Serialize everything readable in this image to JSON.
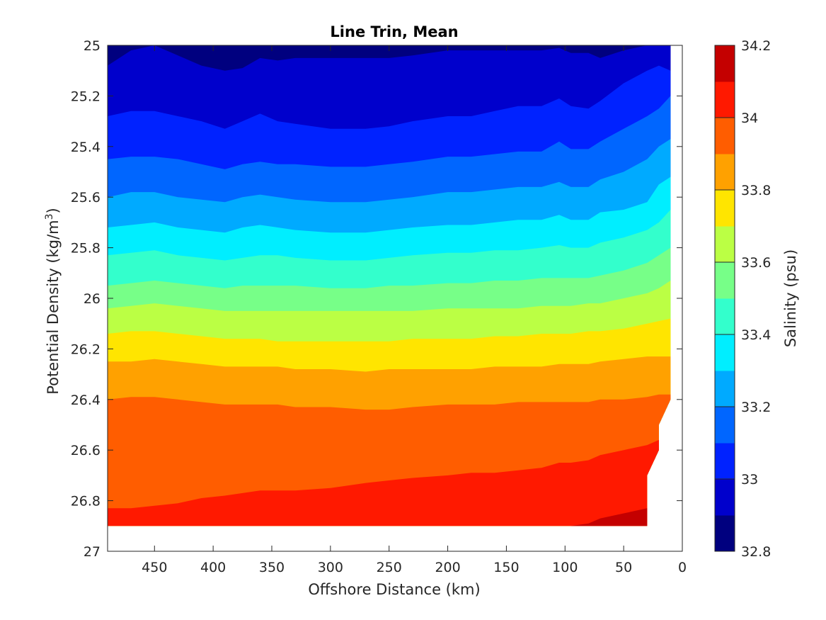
{
  "chart_data": {
    "type": "heatmap",
    "subtype": "filled-contour",
    "title": "Line Trin, Mean",
    "xlabel": "Offshore Distance (km)",
    "ylabel_main": "Potential Density (kg/m",
    "ylabel_sup": "3",
    "ylabel_end": ")",
    "xlim": [
      490,
      0
    ],
    "x_reversed": true,
    "ylim": [
      25,
      27
    ],
    "y_reversed": true,
    "x_ticks": [
      450,
      400,
      350,
      300,
      250,
      200,
      150,
      100,
      50,
      0
    ],
    "y_ticks": [
      25,
      25.2,
      25.4,
      25.6,
      25.8,
      26,
      26.2,
      26.4,
      26.6,
      26.8,
      27
    ],
    "y_tick_labels": [
      "25",
      "25.2",
      "25.4",
      "25.6",
      "25.8",
      "26",
      "26.2",
      "26.4",
      "26.6",
      "26.8",
      "27"
    ],
    "colorbar": {
      "label": "Salinity (psu)",
      "range": [
        32.8,
        34.2
      ],
      "ticks": [
        32.8,
        33,
        33.2,
        33.4,
        33.6,
        33.8,
        34,
        34.2
      ],
      "tick_labels": [
        "32.8",
        "33",
        "33.2",
        "33.4",
        "33.6",
        "33.8",
        "34",
        "34.2"
      ],
      "levels": [
        32.8,
        32.9,
        33.0,
        33.1,
        33.2,
        33.3,
        33.4,
        33.5,
        33.6,
        33.7,
        33.8,
        33.9,
        34.0,
        34.1,
        34.2
      ],
      "colors": [
        "#00007f",
        "#0000cc",
        "#0022ff",
        "#0066ff",
        "#00aaff",
        "#00eeff",
        "#33ffcc",
        "#77ff88",
        "#bbff44",
        "#ffe500",
        "#ffa100",
        "#ff5d00",
        "#ff1900",
        "#c40000"
      ]
    },
    "x_stations": [
      490,
      470,
      450,
      430,
      410,
      390,
      375,
      360,
      345,
      330,
      300,
      270,
      250,
      230,
      200,
      180,
      160,
      140,
      120,
      105,
      95,
      80,
      70,
      50,
      30,
      20,
      10
    ],
    "isopycnal_boundaries": [
      {
        "salinity": 32.9,
        "y": [
          25.08,
          25.02,
          25.0,
          25.04,
          25.08,
          25.1,
          25.09,
          25.05,
          25.06,
          25.05,
          25.05,
          25.05,
          25.05,
          25.04,
          25.02,
          25.02,
          25.02,
          25.02,
          25.02,
          25.01,
          25.03,
          25.03,
          25.05,
          25.02,
          25.0,
          25.0,
          25.0
        ]
      },
      {
        "salinity": 33.0,
        "y": [
          25.28,
          25.26,
          25.26,
          25.28,
          25.3,
          25.33,
          25.3,
          25.27,
          25.3,
          25.31,
          25.33,
          25.33,
          25.32,
          25.3,
          25.28,
          25.28,
          25.26,
          25.24,
          25.24,
          25.21,
          25.24,
          25.25,
          25.22,
          25.15,
          25.1,
          25.08,
          25.1
        ]
      },
      {
        "salinity": 33.1,
        "y": [
          25.45,
          25.44,
          25.44,
          25.45,
          25.47,
          25.49,
          25.47,
          25.46,
          25.47,
          25.47,
          25.48,
          25.48,
          25.47,
          25.46,
          25.44,
          25.44,
          25.43,
          25.42,
          25.42,
          25.38,
          25.41,
          25.41,
          25.38,
          25.33,
          25.28,
          25.25,
          25.2
        ]
      },
      {
        "salinity": 33.2,
        "y": [
          25.6,
          25.58,
          25.58,
          25.6,
          25.61,
          25.62,
          25.6,
          25.59,
          25.6,
          25.61,
          25.62,
          25.62,
          25.61,
          25.6,
          25.58,
          25.58,
          25.57,
          25.56,
          25.56,
          25.54,
          25.56,
          25.56,
          25.53,
          25.5,
          25.45,
          25.4,
          25.37
        ]
      },
      {
        "salinity": 33.3,
        "y": [
          25.72,
          25.71,
          25.7,
          25.72,
          25.73,
          25.74,
          25.72,
          25.71,
          25.72,
          25.73,
          25.74,
          25.74,
          25.73,
          25.72,
          25.71,
          25.71,
          25.7,
          25.69,
          25.69,
          25.67,
          25.69,
          25.69,
          25.66,
          25.65,
          25.62,
          25.55,
          25.52
        ]
      },
      {
        "salinity": 33.4,
        "y": [
          25.83,
          25.82,
          25.81,
          25.83,
          25.84,
          25.85,
          25.84,
          25.83,
          25.83,
          25.84,
          25.85,
          25.85,
          25.84,
          25.83,
          25.82,
          25.82,
          25.81,
          25.81,
          25.8,
          25.79,
          25.8,
          25.8,
          25.78,
          25.76,
          25.73,
          25.7,
          25.65
        ]
      },
      {
        "salinity": 33.5,
        "y": [
          25.95,
          25.94,
          25.93,
          25.94,
          25.95,
          25.96,
          25.95,
          25.95,
          25.95,
          25.95,
          25.96,
          25.96,
          25.95,
          25.95,
          25.94,
          25.94,
          25.93,
          25.93,
          25.92,
          25.92,
          25.92,
          25.92,
          25.91,
          25.89,
          25.86,
          25.83,
          25.8
        ]
      },
      {
        "salinity": 33.6,
        "y": [
          26.04,
          26.03,
          26.02,
          26.03,
          26.04,
          26.05,
          26.05,
          26.05,
          26.05,
          26.05,
          26.05,
          26.05,
          26.05,
          26.05,
          26.04,
          26.04,
          26.04,
          26.04,
          26.03,
          26.03,
          26.03,
          26.02,
          26.02,
          26.0,
          25.98,
          25.96,
          25.93
        ]
      },
      {
        "salinity": 33.7,
        "y": [
          26.14,
          26.13,
          26.13,
          26.14,
          26.15,
          26.16,
          26.16,
          26.16,
          26.17,
          26.17,
          26.17,
          26.17,
          26.17,
          26.16,
          26.16,
          26.16,
          26.15,
          26.15,
          26.14,
          26.14,
          26.14,
          26.13,
          26.13,
          26.12,
          26.1,
          26.09,
          26.08
        ]
      },
      {
        "salinity": 33.8,
        "y": [
          26.25,
          26.25,
          26.24,
          26.25,
          26.26,
          26.27,
          26.27,
          26.27,
          26.27,
          26.28,
          26.28,
          26.29,
          26.28,
          26.28,
          26.28,
          26.28,
          26.27,
          26.27,
          26.27,
          26.26,
          26.26,
          26.26,
          26.25,
          26.24,
          26.23,
          26.23,
          26.23
        ]
      },
      {
        "salinity": 33.9,
        "y": [
          26.4,
          26.39,
          26.39,
          26.4,
          26.41,
          26.42,
          26.42,
          26.42,
          26.42,
          26.43,
          26.43,
          26.44,
          26.44,
          26.43,
          26.42,
          26.42,
          26.42,
          26.41,
          26.41,
          26.41,
          26.41,
          26.41,
          26.4,
          26.4,
          26.39,
          26.38,
          26.38
        ]
      },
      {
        "salinity": 34.0,
        "y": [
          26.83,
          26.83,
          26.82,
          26.81,
          26.79,
          26.78,
          26.77,
          26.76,
          26.76,
          26.76,
          26.75,
          26.73,
          26.72,
          26.71,
          26.7,
          26.69,
          26.69,
          26.68,
          26.67,
          26.65,
          26.65,
          26.64,
          26.62,
          26.6,
          26.58,
          26.56,
          26.56
        ]
      },
      {
        "salinity": 34.1,
        "y": [
          27.1,
          27.1,
          27.1,
          27.1,
          27.1,
          27.1,
          27.1,
          27.1,
          27.1,
          27.1,
          27.1,
          27.1,
          27.1,
          27.1,
          27.1,
          27.1,
          27.1,
          27.1,
          27.1,
          27.1,
          26.9,
          26.89,
          26.87,
          26.85,
          26.83,
          26.83,
          26.83
        ]
      }
    ],
    "data_mask": {
      "x": [
        490,
        490,
        30,
        30,
        20,
        20,
        10,
        10
      ],
      "y": [
        25,
        26.9,
        26.9,
        26.7,
        26.6,
        26.5,
        26.4,
        25
      ]
    }
  }
}
